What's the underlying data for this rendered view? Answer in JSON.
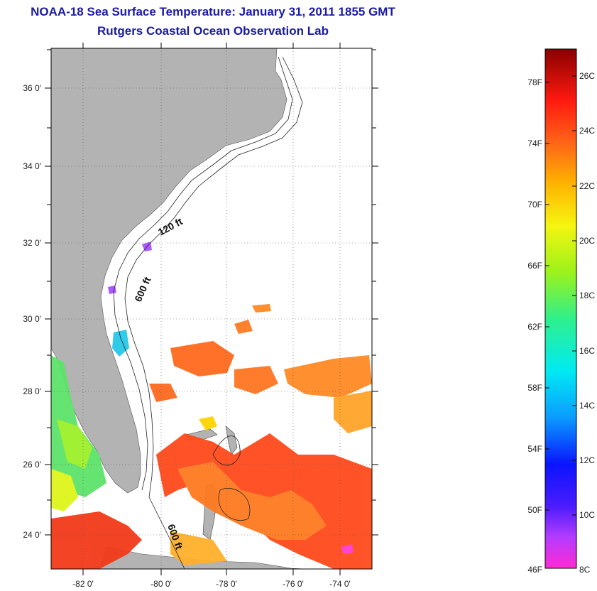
{
  "header": {
    "title": "NOAA-18 Sea Surface Temperature:  January 31, 2011 1855 GMT",
    "subtitle": "Rutgers Coastal Ocean Observation Lab"
  },
  "map": {
    "lat_labels": [
      "36 0'",
      "34 0'",
      "32 0'",
      "30 0'",
      "28 0'",
      "26 0'",
      "24 0'"
    ],
    "lon_labels": [
      "-82 0'",
      "-80 0'",
      "-78 0'",
      "-76 0'",
      "-74 0'"
    ],
    "depth_labels": [
      "120 ft",
      "600 ft",
      "600 ft"
    ],
    "land_color": "#b3b3b3"
  },
  "colorbar": {
    "fahrenheit_labels": [
      "78F",
      "74F",
      "70F",
      "66F",
      "62F",
      "58F",
      "54F",
      "50F",
      "46F"
    ],
    "celsius_labels": [
      "26C",
      "24C",
      "22C",
      "20C",
      "18C",
      "16C",
      "14C",
      "12C",
      "10C",
      "8C"
    ]
  }
}
